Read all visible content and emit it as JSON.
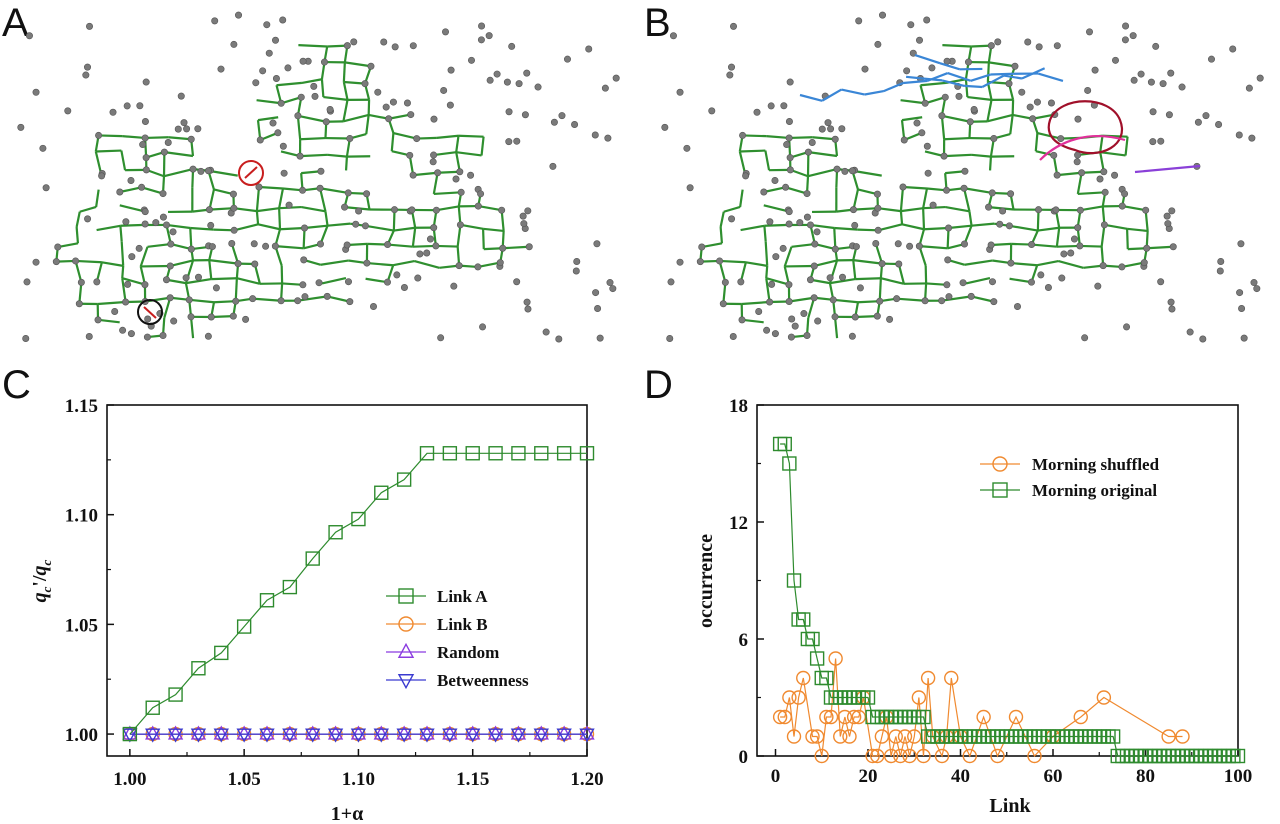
{
  "panel_labels": [
    "A",
    "B",
    "C",
    "D"
  ],
  "colors": {
    "network_edges": "#2f8f2f",
    "network_nodes": "#7a7a7a",
    "cluster_blue": "#3a86d6",
    "cluster_red": "#a0102a",
    "cluster_magenta": "#e0309a",
    "cluster_purple": "#8a40d8",
    "circle_red": "#c81e1e",
    "circle_black": "#111111",
    "link_a": "#2e8b2e",
    "link_b": "#f08a30",
    "random": "#8a3be0",
    "betweenness": "#3a3ad0",
    "shuffled": "#f08a30",
    "original": "#2e8b2e"
  },
  "chart_data": [
    {
      "id": "C",
      "type": "line",
      "title": "",
      "xlabel": "1+α",
      "ylabel_main": "q",
      "ylabel_sub": "c",
      "ylabel_sep": "'/",
      "xlim": [
        0.99,
        1.2
      ],
      "ylim": [
        0.99,
        1.15
      ],
      "xticks": [
        "1.00",
        "1.05",
        "1.10",
        "1.15",
        "1.20"
      ],
      "yticks": [
        "1.00",
        "1.05",
        "1.10",
        "1.15"
      ],
      "x": [
        1.0,
        1.01,
        1.02,
        1.03,
        1.04,
        1.05,
        1.06,
        1.07,
        1.08,
        1.09,
        1.1,
        1.11,
        1.12,
        1.13,
        1.14,
        1.15,
        1.16,
        1.17,
        1.18,
        1.19,
        1.2
      ],
      "series": [
        {
          "name": "Link A",
          "marker": "square",
          "values": [
            1.0,
            1.012,
            1.018,
            1.03,
            1.037,
            1.049,
            1.061,
            1.067,
            1.08,
            1.092,
            1.098,
            1.11,
            1.116,
            1.128,
            1.128,
            1.128,
            1.128,
            1.128,
            1.128,
            1.128,
            1.128
          ]
        },
        {
          "name": "Link B",
          "marker": "circle",
          "values": [
            1.0,
            1.0,
            1.0,
            1.0,
            1.0,
            1.0,
            1.0,
            1.0,
            1.0,
            1.0,
            1.0,
            1.0,
            1.0,
            1.0,
            1.0,
            1.0,
            1.0,
            1.0,
            1.0,
            1.0,
            1.0
          ]
        },
        {
          "name": "Random",
          "marker": "triangle-up",
          "values": [
            1.0,
            1.0,
            1.0,
            1.0,
            1.0,
            1.0,
            1.0,
            1.0,
            1.0,
            1.0,
            1.0,
            1.0,
            1.0,
            1.0,
            1.0,
            1.0,
            1.0,
            1.0,
            1.0,
            1.0,
            1.0
          ]
        },
        {
          "name": "Betweenness",
          "marker": "triangle-down",
          "values": [
            1.0,
            1.0,
            1.0,
            1.0,
            1.0,
            1.0,
            1.0,
            1.0,
            1.0,
            1.0,
            1.0,
            1.0,
            1.0,
            1.0,
            1.0,
            1.0,
            1.0,
            1.0,
            1.0,
            1.0,
            1.0
          ]
        }
      ],
      "legend": "lower-right"
    },
    {
      "id": "D",
      "type": "line",
      "title": "",
      "xlabel": "Link",
      "ylabel": "occurrence",
      "xlim": [
        -4,
        100
      ],
      "ylim": [
        0,
        18
      ],
      "xticks": [
        "0",
        "20",
        "40",
        "60",
        "80",
        "100"
      ],
      "yticks": [
        "0",
        "6",
        "12",
        "18"
      ],
      "series": [
        {
          "name": "Morning shuffled",
          "marker": "circle",
          "x": [
            1,
            2,
            3,
            4,
            5,
            6,
            8,
            9,
            10,
            11,
            12,
            13,
            14,
            15,
            16,
            17,
            18,
            19,
            21,
            22,
            23,
            24,
            25,
            26,
            27,
            28,
            29,
            30,
            31,
            32,
            33,
            34,
            36,
            37,
            38,
            40,
            42,
            45,
            48,
            52,
            56,
            60,
            66,
            71,
            85,
            88
          ],
          "values": [
            2,
            2,
            3,
            1,
            3,
            4,
            1,
            1,
            0,
            2,
            2,
            5,
            1,
            2,
            1,
            2,
            2,
            3,
            0,
            0,
            1,
            2,
            0,
            1,
            0,
            1,
            0,
            1,
            3,
            0,
            4,
            1,
            0,
            1,
            4,
            1,
            0,
            2,
            0,
            2,
            0,
            1,
            2,
            3,
            1,
            1
          ]
        },
        {
          "name": "Morning original",
          "marker": "square",
          "x": [
            1,
            2,
            3,
            4,
            5,
            6,
            7,
            8,
            9,
            10,
            11,
            12,
            13,
            14,
            15,
            16,
            17,
            18,
            19,
            20,
            21,
            22,
            23,
            24,
            25,
            26,
            27,
            28,
            29,
            30,
            31,
            32,
            33,
            34,
            35,
            36,
            37,
            38,
            39,
            40,
            41,
            42,
            43,
            44,
            45,
            46,
            47,
            48,
            49,
            50,
            51,
            52,
            53,
            54,
            55,
            56,
            57,
            58,
            59,
            60,
            61,
            62,
            63,
            64,
            65,
            66,
            67,
            68,
            69,
            70,
            71,
            72,
            73,
            74,
            75,
            76,
            77,
            78,
            79,
            80,
            81,
            82,
            83,
            84,
            85,
            86,
            87,
            88,
            89,
            90,
            91,
            92,
            93,
            94,
            95,
            96,
            97,
            98,
            99,
            100
          ],
          "values": [
            16,
            16,
            15,
            9,
            7,
            7,
            6,
            6,
            5,
            4,
            4,
            3,
            3,
            3,
            3,
            3,
            3,
            3,
            3,
            3,
            2,
            2,
            2,
            2,
            2,
            2,
            2,
            2,
            2,
            2,
            2,
            2,
            1,
            1,
            1,
            1,
            1,
            1,
            1,
            1,
            1,
            1,
            1,
            1,
            1,
            1,
            1,
            1,
            1,
            1,
            1,
            1,
            1,
            1,
            1,
            1,
            1,
            1,
            1,
            1,
            1,
            1,
            1,
            1,
            1,
            1,
            1,
            1,
            1,
            1,
            1,
            1,
            1,
            0,
            0,
            0,
            0,
            0,
            0,
            0,
            0,
            0,
            0,
            0,
            0,
            0,
            0,
            0,
            0,
            0,
            0,
            0,
            0,
            0,
            0,
            0,
            0,
            0,
            0,
            0
          ]
        }
      ],
      "legend": "top-right"
    }
  ]
}
